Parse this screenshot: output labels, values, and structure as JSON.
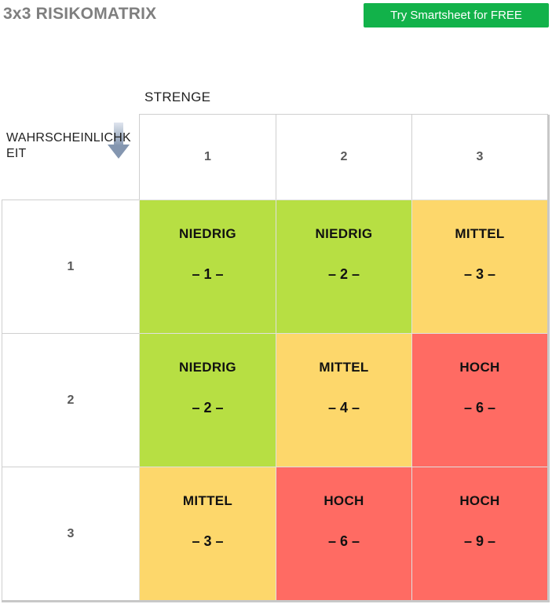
{
  "page": {
    "title": "3x3 RISIKOMATRIX",
    "cta_label": "Try Smartsheet for FREE"
  },
  "axes": {
    "severity_label": "STRENGE",
    "likelihood_label": "WAHRSCHEINLICHKEIT",
    "severity_values": [
      "1",
      "2",
      "3"
    ],
    "likelihood_values": [
      "1",
      "2",
      "3"
    ]
  },
  "colors": {
    "low": "#b7df43",
    "medium": "#fdd76b",
    "high": "#ff6b63",
    "cta": "#12b24a",
    "arrow": "#8496b0"
  },
  "matrix": [
    [
      {
        "level": "NIEDRIG",
        "score": "– 1 –",
        "color": "#b7df43"
      },
      {
        "level": "NIEDRIG",
        "score": "– 2 –",
        "color": "#b7df43"
      },
      {
        "level": "MITTEL",
        "score": "– 3 –",
        "color": "#fdd76b"
      }
    ],
    [
      {
        "level": "NIEDRIG",
        "score": "– 2 –",
        "color": "#b7df43"
      },
      {
        "level": "MITTEL",
        "score": "– 4 –",
        "color": "#fdd76b"
      },
      {
        "level": "HOCH",
        "score": "– 6 –",
        "color": "#ff6b63"
      }
    ],
    [
      {
        "level": "MITTEL",
        "score": "– 3 –",
        "color": "#fdd76b"
      },
      {
        "level": "HOCH",
        "score": "– 6 –",
        "color": "#ff6b63"
      },
      {
        "level": "HOCH",
        "score": "– 9 –",
        "color": "#ff6b63"
      }
    ]
  ]
}
